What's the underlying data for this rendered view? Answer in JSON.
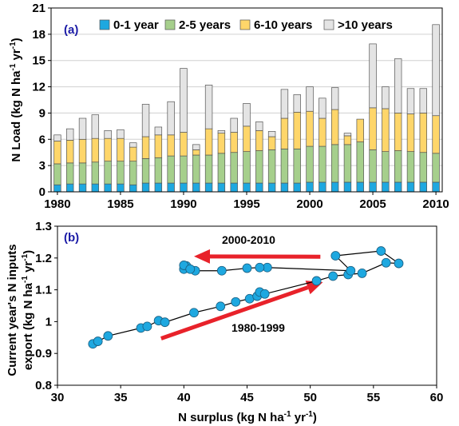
{
  "chart_data": [
    {
      "type": "bar",
      "stacked": true,
      "panel_label": "(a)",
      "ylabel": {
        "main": "N Load (kg N ha",
        "sup1": "-1",
        "mid": " yr",
        "sup2": "-1",
        "end": ")"
      },
      "ylim": [
        0,
        21
      ],
      "yticks": [
        0,
        3,
        6,
        9,
        12,
        15,
        18,
        21
      ],
      "xticks": [
        1980,
        1985,
        1990,
        1995,
        2000,
        2005,
        2010
      ],
      "legend_placement": "top",
      "categories": [
        1980,
        1981,
        1982,
        1983,
        1984,
        1985,
        1986,
        1987,
        1988,
        1989,
        1990,
        1991,
        1992,
        1993,
        1994,
        1995,
        1996,
        1997,
        1998,
        1999,
        2000,
        2001,
        2002,
        2003,
        2004,
        2005,
        2006,
        2007,
        2008,
        2009,
        2010
      ],
      "series": [
        {
          "name": "0-1 year",
          "color": "#1ea8e0",
          "values": [
            0.8,
            0.9,
            0.9,
            0.9,
            0.9,
            0.9,
            0.8,
            1.0,
            1.0,
            1.0,
            1.0,
            1.0,
            1.0,
            1.0,
            1.0,
            1.0,
            1.0,
            1.0,
            1.0,
            1.0,
            1.1,
            1.1,
            1.1,
            1.1,
            1.1,
            1.1,
            1.1,
            1.1,
            1.1,
            1.1,
            1.1
          ]
        },
        {
          "name": "2-5 years",
          "color": "#a6cf8c",
          "values": [
            2.4,
            2.4,
            2.4,
            2.5,
            2.6,
            2.6,
            2.7,
            2.8,
            2.9,
            3.1,
            3.1,
            3.2,
            3.2,
            3.4,
            3.5,
            3.6,
            3.7,
            3.8,
            3.9,
            3.9,
            4.1,
            4.1,
            4.3,
            4.3,
            4.6,
            3.7,
            3.5,
            3.6,
            3.5,
            3.4,
            3.3
          ]
        },
        {
          "name": "6-10 years",
          "color": "#fed66a",
          "values": [
            2.6,
            2.6,
            2.7,
            2.7,
            2.6,
            2.6,
            1.6,
            2.5,
            2.6,
            2.4,
            2.7,
            0.6,
            3.0,
            2.3,
            2.3,
            2.9,
            2.3,
            1.5,
            3.5,
            4.2,
            4.0,
            3.2,
            4.0,
            1.0,
            2.6,
            4.8,
            4.9,
            4.3,
            4.3,
            4.5,
            4.3
          ]
        },
        {
          "name": ">10 years",
          "color": "#e4e4e4",
          "values": [
            0.7,
            1.3,
            2.4,
            2.7,
            0.9,
            1.0,
            0.5,
            3.7,
            0.9,
            3.8,
            7.3,
            0.6,
            5.0,
            0.3,
            1.6,
            2.6,
            1.0,
            0.6,
            3.3,
            2.0,
            2.8,
            2.3,
            2.5,
            0.3,
            0.0,
            7.3,
            2.5,
            6.2,
            2.9,
            2.8,
            10.4
          ]
        }
      ]
    },
    {
      "type": "scatter",
      "panel_label": "(b)",
      "xlabel": {
        "main": "N surplus (kg N ha",
        "sup1": "-1",
        "mid": " yr",
        "sup2": "-1",
        "end": ")"
      },
      "ylabel_line1": "Current year's N inputs",
      "ylabel_line2": {
        "main": "export (kg N ha",
        "sup1": "-1",
        "mid": " yr",
        "sup2": "-1",
        "end": ")"
      },
      "xlim": [
        30,
        60
      ],
      "ylim": [
        0.8,
        1.3
      ],
      "xticks": [
        30,
        35,
        40,
        45,
        50,
        55,
        60
      ],
      "yticks": [
        0.8,
        0.9,
        1.0,
        1.1,
        1.2,
        1.3
      ],
      "ytick_labels": [
        "0.8",
        "0.9",
        "1",
        "1.1",
        "1.2",
        "1.3"
      ],
      "annotations": [
        "2000-2010",
        "1980-1999"
      ],
      "point_color": "#1ea8e0",
      "arrow_color": "#e8222a",
      "path": [
        [
          32.8,
          0.93
        ],
        [
          33.2,
          0.938
        ],
        [
          34.0,
          0.955
        ],
        [
          36.6,
          0.98
        ],
        [
          37.1,
          0.985
        ],
        [
          38.0,
          1.003
        ],
        [
          38.5,
          0.998
        ],
        [
          40.8,
          1.028
        ],
        [
          42.9,
          1.048
        ],
        [
          44.1,
          1.062
        ],
        [
          45.2,
          1.072
        ],
        [
          45.8,
          1.08
        ],
        [
          46.0,
          1.093
        ],
        [
          46.4,
          1.087
        ],
        [
          50.5,
          1.128
        ],
        [
          51.8,
          1.143
        ],
        [
          53.0,
          1.148
        ],
        [
          54.1,
          1.152
        ],
        [
          56.0,
          1.185
        ],
        [
          57.0,
          1.183
        ],
        [
          55.6,
          1.222
        ],
        [
          52.0,
          1.207
        ],
        [
          53.2,
          1.16
        ],
        [
          46.6,
          1.17
        ],
        [
          46.0,
          1.17
        ],
        [
          45.0,
          1.168
        ],
        [
          43.0,
          1.16
        ],
        [
          40.9,
          1.16
        ],
        [
          40.2,
          1.175
        ],
        [
          40.0,
          1.165
        ],
        [
          40.0,
          1.177
        ],
        [
          40.5,
          1.165
        ]
      ]
    }
  ]
}
